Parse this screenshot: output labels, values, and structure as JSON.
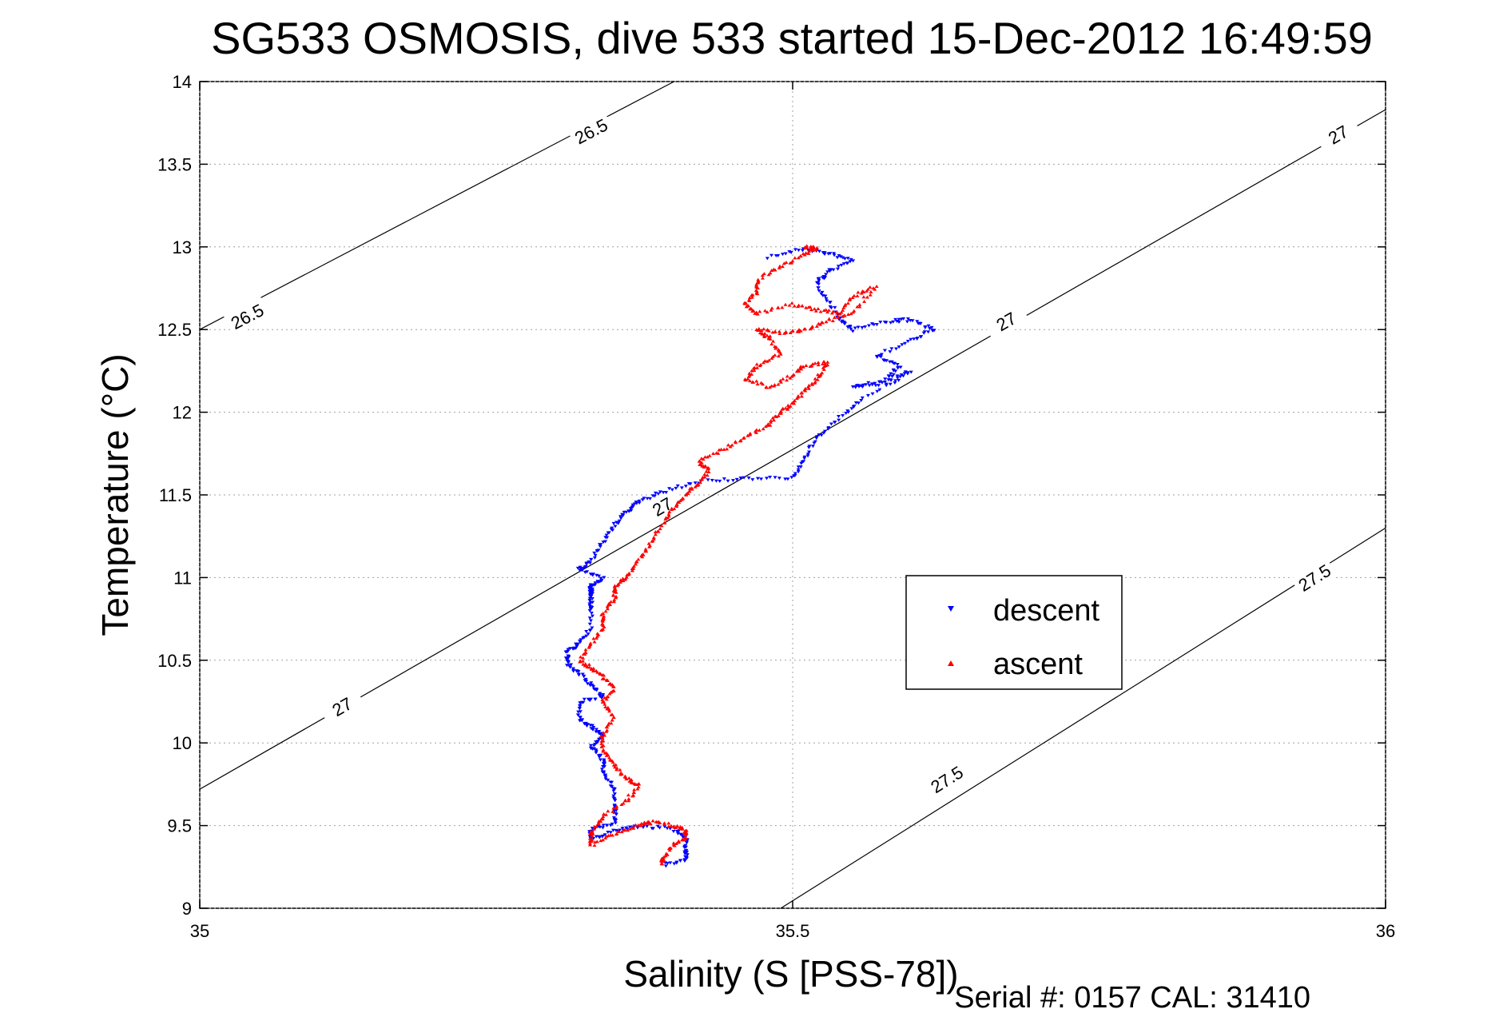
{
  "chart_data": {
    "type": "scatter",
    "title": "SG533 OSMOSIS, dive 533 started 15-Dec-2012 16:49:59",
    "xlabel": "Salinity (S [PSS-78])",
    "ylabel": "Temperature (°C)",
    "footer": "Serial #: 0157  CAL: 31410",
    "xlim": [
      35,
      36
    ],
    "ylim": [
      9,
      14
    ],
    "xticks": [
      "35",
      "35.5",
      "36"
    ],
    "yticks": [
      "9",
      "9.5",
      "10",
      "10.5",
      "11",
      "11.5",
      "12",
      "12.5",
      "13",
      "13.5",
      "14"
    ],
    "grid": true,
    "legend_position": "right",
    "colors": {
      "descent": "#0000ff",
      "ascent": "#ff0000",
      "contour": "#000000"
    },
    "series": [
      {
        "name": "descent",
        "marker": "triangle-down",
        "path": [
          [
            35.48,
            12.94
          ],
          [
            35.51,
            12.99
          ],
          [
            35.53,
            12.96
          ],
          [
            35.55,
            12.92
          ],
          [
            35.53,
            12.85
          ],
          [
            35.52,
            12.78
          ],
          [
            35.53,
            12.68
          ],
          [
            35.54,
            12.56
          ],
          [
            35.55,
            12.5
          ],
          [
            35.58,
            12.55
          ],
          [
            35.6,
            12.56
          ],
          [
            35.62,
            12.5
          ],
          [
            35.6,
            12.44
          ],
          [
            35.57,
            12.34
          ],
          [
            35.59,
            12.28
          ],
          [
            35.58,
            12.2
          ],
          [
            35.55,
            12.15
          ],
          [
            35.58,
            12.18
          ],
          [
            35.6,
            12.25
          ],
          [
            35.56,
            12.08
          ],
          [
            35.54,
            11.97
          ],
          [
            35.52,
            11.85
          ],
          [
            35.51,
            11.72
          ],
          [
            35.5,
            11.6
          ],
          [
            35.46,
            11.6
          ],
          [
            35.42,
            11.58
          ],
          [
            35.39,
            11.52
          ],
          [
            35.37,
            11.46
          ],
          [
            35.36,
            11.4
          ],
          [
            35.35,
            11.32
          ],
          [
            35.34,
            11.22
          ],
          [
            35.33,
            11.1
          ],
          [
            35.32,
            11.05
          ],
          [
            35.34,
            11.0
          ],
          [
            35.33,
            10.95
          ],
          [
            35.33,
            10.8
          ],
          [
            35.33,
            10.95
          ],
          [
            35.33,
            10.9
          ],
          [
            35.33,
            10.7
          ],
          [
            35.32,
            10.6
          ],
          [
            35.31,
            10.55
          ],
          [
            35.31,
            10.48
          ],
          [
            35.32,
            10.42
          ],
          [
            35.33,
            10.35
          ],
          [
            35.34,
            10.28
          ],
          [
            35.32,
            10.25
          ],
          [
            35.32,
            10.15
          ],
          [
            35.33,
            10.1
          ],
          [
            35.34,
            10.05
          ],
          [
            35.33,
            9.98
          ],
          [
            35.34,
            9.9
          ],
          [
            35.34,
            9.82
          ],
          [
            35.35,
            9.72
          ],
          [
            35.35,
            9.6
          ],
          [
            35.35,
            9.52
          ],
          [
            35.33,
            9.48
          ],
          [
            35.33,
            9.42
          ],
          [
            35.35,
            9.47
          ],
          [
            35.37,
            9.5
          ],
          [
            35.4,
            9.48
          ],
          [
            35.41,
            9.43
          ],
          [
            35.41,
            9.35
          ],
          [
            35.41,
            9.3
          ],
          [
            35.39,
            9.26
          ]
        ]
      },
      {
        "name": "ascent",
        "marker": "triangle-up",
        "path": [
          [
            35.51,
            13.0
          ],
          [
            35.52,
            12.99
          ],
          [
            35.51,
            12.95
          ],
          [
            35.49,
            12.88
          ],
          [
            35.47,
            12.8
          ],
          [
            35.47,
            12.73
          ],
          [
            35.46,
            12.65
          ],
          [
            35.47,
            12.6
          ],
          [
            35.5,
            12.65
          ],
          [
            35.52,
            12.62
          ],
          [
            35.54,
            12.6
          ],
          [
            35.55,
            12.7
          ],
          [
            35.57,
            12.76
          ],
          [
            35.55,
            12.6
          ],
          [
            35.53,
            12.55
          ],
          [
            35.51,
            12.5
          ],
          [
            35.49,
            12.48
          ],
          [
            35.47,
            12.5
          ],
          [
            35.48,
            12.45
          ],
          [
            35.49,
            12.35
          ],
          [
            35.47,
            12.28
          ],
          [
            35.46,
            12.2
          ],
          [
            35.48,
            12.15
          ],
          [
            35.5,
            12.22
          ],
          [
            35.51,
            12.28
          ],
          [
            35.53,
            12.3
          ],
          [
            35.52,
            12.2
          ],
          [
            35.51,
            12.12
          ],
          [
            35.5,
            12.05
          ],
          [
            35.49,
            12.0
          ],
          [
            35.48,
            11.92
          ],
          [
            35.46,
            11.85
          ],
          [
            35.44,
            11.77
          ],
          [
            35.42,
            11.7
          ],
          [
            35.43,
            11.65
          ],
          [
            35.42,
            11.56
          ],
          [
            35.41,
            11.5
          ],
          [
            35.4,
            11.42
          ],
          [
            35.39,
            11.32
          ],
          [
            35.38,
            11.2
          ],
          [
            35.37,
            11.1
          ],
          [
            35.36,
            11.0
          ],
          [
            35.35,
            10.95
          ],
          [
            35.35,
            10.88
          ],
          [
            35.34,
            10.78
          ],
          [
            35.34,
            10.7
          ],
          [
            35.33,
            10.6
          ],
          [
            35.32,
            10.5
          ],
          [
            35.33,
            10.45
          ],
          [
            35.34,
            10.4
          ],
          [
            35.35,
            10.33
          ],
          [
            35.34,
            10.25
          ],
          [
            35.35,
            10.15
          ],
          [
            35.34,
            10.05
          ],
          [
            35.34,
            9.95
          ],
          [
            35.35,
            9.86
          ],
          [
            35.36,
            9.78
          ],
          [
            35.37,
            9.74
          ],
          [
            35.36,
            9.65
          ],
          [
            35.34,
            9.55
          ],
          [
            35.33,
            9.46
          ],
          [
            35.33,
            9.38
          ],
          [
            35.35,
            9.45
          ],
          [
            35.37,
            9.5
          ],
          [
            35.38,
            9.52
          ],
          [
            35.4,
            9.5
          ],
          [
            35.41,
            9.47
          ],
          [
            35.41,
            9.43
          ],
          [
            35.4,
            9.38
          ],
          [
            35.39,
            9.3
          ],
          [
            35.39,
            9.27
          ]
        ]
      }
    ],
    "contours": [
      {
        "label": "26.5",
        "line": [
          [
            35.0,
            12.5
          ],
          [
            35.4,
            14.0
          ]
        ],
        "label_at": [
          [
            35.04,
            12.58
          ],
          [
            35.33,
            13.7
          ]
        ]
      },
      {
        "label": "27",
        "line": [
          [
            35.0,
            9.72
          ],
          [
            36.0,
            13.83
          ]
        ],
        "label_at": [
          [
            35.12,
            10.22
          ],
          [
            35.39,
            11.43
          ],
          [
            35.68,
            12.55
          ],
          [
            35.96,
            13.68
          ]
        ]
      },
      {
        "label": "27.5",
        "line": [
          [
            35.49,
            9.0
          ],
          [
            36.0,
            11.3
          ]
        ],
        "label_at": [
          [
            35.63,
            9.78
          ],
          [
            35.94,
            11.0
          ]
        ]
      }
    ]
  }
}
